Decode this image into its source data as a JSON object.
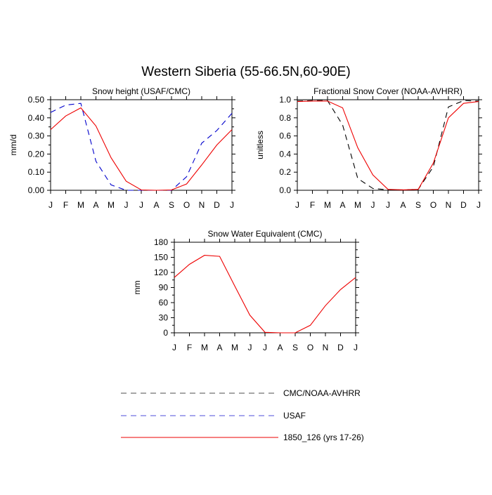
{
  "figure": {
    "title": "Western Siberia (55-66.5N,60-90E)"
  },
  "legend": {
    "items": [
      {
        "label": "CMC/NOAA-AVHRR",
        "color": "#000000",
        "dash": "dashed"
      },
      {
        "label": "USAF",
        "color": "#0000cc",
        "dash": "dashed"
      },
      {
        "label": "1850_126 (yrs 17-26)",
        "color": "#ee0000",
        "dash": "solid"
      }
    ]
  },
  "chart_data": [
    {
      "type": "line",
      "title": "Snow height (USAF/CMC)",
      "ylabel": "mm/d",
      "x": [
        "J",
        "F",
        "M",
        "A",
        "M",
        "J",
        "J",
        "A",
        "S",
        "O",
        "N",
        "D",
        "J"
      ],
      "ylim": [
        0,
        0.5
      ],
      "yticks": [
        0,
        0.1,
        0.2,
        0.3,
        0.4,
        0.5
      ],
      "ytick_labels": [
        "0.00",
        "0.10",
        "0.20",
        "0.30",
        "0.40",
        "0.50"
      ],
      "series": [
        {
          "key": "obs",
          "color": "#000000",
          "dash": "dashed",
          "values": [
            0,
            0,
            0,
            0,
            0,
            0,
            0,
            0,
            0,
            0,
            0,
            0,
            0
          ]
        },
        {
          "key": "usaf",
          "color": "#0000cc",
          "dash": "dashed",
          "values": [
            0.43,
            0.47,
            0.48,
            0.16,
            0.03,
            0.0,
            0.0,
            0.0,
            0.0,
            0.075,
            0.26,
            0.33,
            0.425
          ]
        },
        {
          "key": "model",
          "color": "#ee0000",
          "dash": "solid",
          "values": [
            0.335,
            0.41,
            0.455,
            0.355,
            0.18,
            0.05,
            0.002,
            0.0,
            0.002,
            0.035,
            0.14,
            0.25,
            0.335
          ]
        }
      ]
    },
    {
      "type": "line",
      "title": "Fractional Snow Cover (NOAA-AVHRR)",
      "ylabel": "unitless",
      "x": [
        "J",
        "F",
        "M",
        "A",
        "M",
        "J",
        "J",
        "A",
        "S",
        "O",
        "N",
        "D",
        "J"
      ],
      "ylim": [
        0,
        1.0
      ],
      "yticks": [
        0,
        0.2,
        0.4,
        0.6,
        0.8,
        1.0
      ],
      "ytick_labels": [
        "0.0",
        "0.2",
        "0.4",
        "0.6",
        "0.8",
        "1.0"
      ],
      "series": [
        {
          "key": "obs",
          "color": "#000000",
          "dash": "dashed",
          "values": [
            0.985,
            0.99,
            0.99,
            0.72,
            0.13,
            0.02,
            0.005,
            0.005,
            0.01,
            0.26,
            0.92,
            0.99,
            0.985
          ]
        },
        {
          "key": "model",
          "color": "#ee0000",
          "dash": "solid",
          "values": [
            0.98,
            0.985,
            0.985,
            0.91,
            0.47,
            0.17,
            0.01,
            0.005,
            0.01,
            0.3,
            0.8,
            0.96,
            0.98
          ]
        }
      ]
    },
    {
      "type": "line",
      "title": "Snow Water Equivalent (CMC)",
      "ylabel": "mm",
      "x": [
        "J",
        "F",
        "M",
        "A",
        "M",
        "J",
        "J",
        "A",
        "S",
        "O",
        "N",
        "D",
        "J"
      ],
      "ylim": [
        0,
        180
      ],
      "yticks": [
        0,
        30,
        60,
        90,
        120,
        150,
        180
      ],
      "ytick_labels": [
        "0",
        "30",
        "60",
        "90",
        "120",
        "150",
        "180"
      ],
      "series": [
        {
          "key": "obs",
          "color": "#000000",
          "dash": "dashed",
          "values": [
            0,
            0,
            0,
            0,
            0,
            0,
            0,
            0,
            0,
            0,
            0,
            0,
            0
          ]
        },
        {
          "key": "model",
          "color": "#ee0000",
          "dash": "solid",
          "values": [
            110,
            136,
            154,
            152,
            93,
            35,
            1,
            0,
            0,
            15,
            54,
            86,
            110
          ]
        }
      ]
    }
  ]
}
